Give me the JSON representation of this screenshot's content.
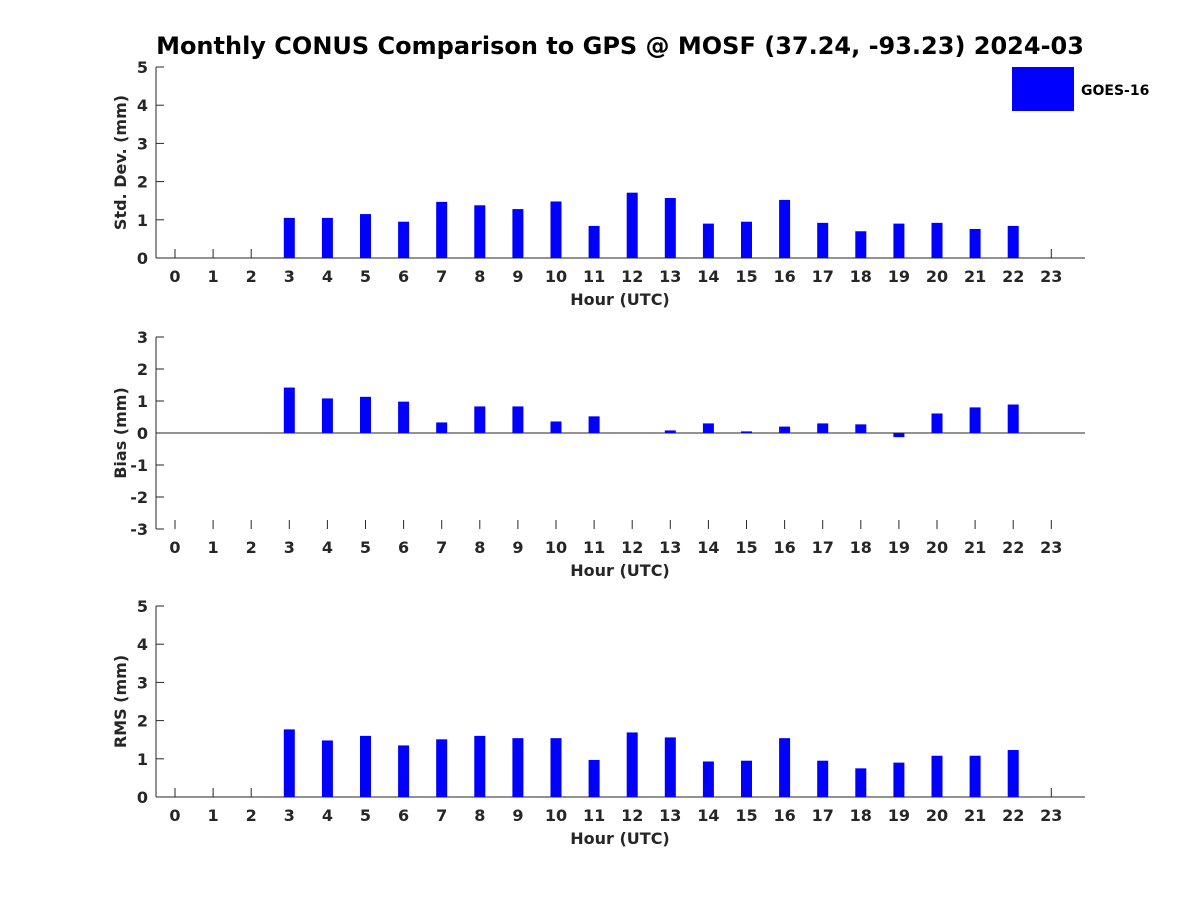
{
  "title": "Monthly CONUS Comparison to GPS @ MOSF (37.24, -93.23) 2024-03",
  "legend": {
    "label": "GOES-16",
    "placement": "top-right"
  },
  "colors": {
    "bar": "#0000ff",
    "axis": "#262626"
  },
  "chart_data": [
    {
      "type": "bar",
      "title": "Monthly CONUS Comparison to GPS @ MOSF (37.24, -93.23) 2024-03",
      "xlabel": "Hour (UTC)",
      "ylabel": "Std. Dev. (mm)",
      "ylim": [
        0,
        5
      ],
      "yticks": [
        0,
        1,
        2,
        3,
        4,
        5
      ],
      "categories": [
        "0",
        "1",
        "2",
        "3",
        "4",
        "5",
        "6",
        "7",
        "8",
        "9",
        "10",
        "11",
        "12",
        "13",
        "14",
        "15",
        "16",
        "17",
        "18",
        "19",
        "20",
        "21",
        "22",
        "23"
      ],
      "series": [
        {
          "name": "GOES-16",
          "values": [
            0,
            0,
            0,
            1.05,
            1.05,
            1.15,
            0.95,
            1.47,
            1.38,
            1.28,
            1.48,
            0.84,
            1.71,
            1.57,
            0.9,
            0.95,
            1.52,
            0.92,
            0.7,
            0.9,
            0.92,
            0.76,
            0.84,
            0
          ]
        }
      ]
    },
    {
      "type": "bar",
      "xlabel": "Hour (UTC)",
      "ylabel": "Bias (mm)",
      "ylim": [
        -3,
        3
      ],
      "yticks": [
        -3,
        -2,
        -1,
        0,
        1,
        2,
        3
      ],
      "categories": [
        "0",
        "1",
        "2",
        "3",
        "4",
        "5",
        "6",
        "7",
        "8",
        "9",
        "10",
        "11",
        "12",
        "13",
        "14",
        "15",
        "16",
        "17",
        "18",
        "19",
        "20",
        "21",
        "22",
        "23"
      ],
      "series": [
        {
          "name": "GOES-16",
          "values": [
            0,
            0,
            0,
            1.42,
            1.08,
            1.13,
            0.98,
            0.33,
            0.83,
            0.83,
            0.36,
            0.52,
            0,
            0.08,
            0.3,
            0.05,
            0.2,
            0.3,
            0.27,
            -0.13,
            0.61,
            0.8,
            0.89,
            0
          ]
        }
      ]
    },
    {
      "type": "bar",
      "xlabel": "Hour (UTC)",
      "ylabel": "RMS (mm)",
      "ylim": [
        0,
        5
      ],
      "yticks": [
        0,
        1,
        2,
        3,
        4,
        5
      ],
      "categories": [
        "0",
        "1",
        "2",
        "3",
        "4",
        "5",
        "6",
        "7",
        "8",
        "9",
        "10",
        "11",
        "12",
        "13",
        "14",
        "15",
        "16",
        "17",
        "18",
        "19",
        "20",
        "21",
        "22",
        "23"
      ],
      "series": [
        {
          "name": "GOES-16",
          "values": [
            0,
            0,
            0,
            1.77,
            1.48,
            1.6,
            1.35,
            1.51,
            1.6,
            1.54,
            1.54,
            0.97,
            1.69,
            1.56,
            0.93,
            0.95,
            1.54,
            0.95,
            0.75,
            0.9,
            1.08,
            1.08,
            1.23,
            0
          ]
        }
      ]
    }
  ]
}
